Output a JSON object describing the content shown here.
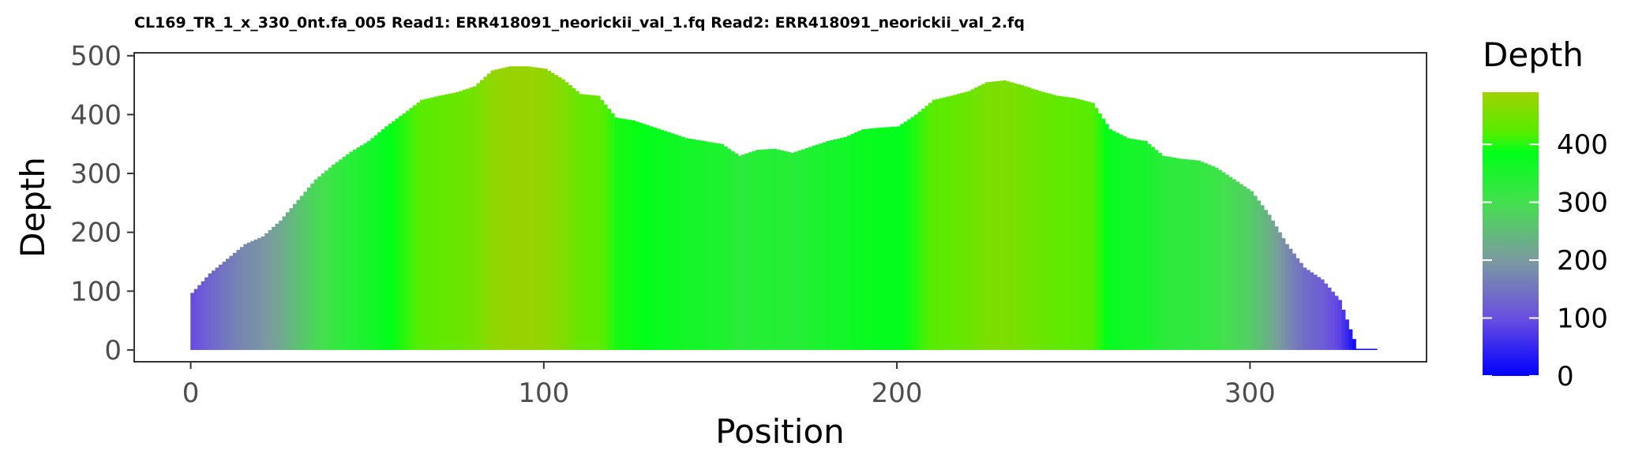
{
  "chart_data": {
    "type": "area",
    "title": "CL169_TR_1_x_330_0nt.fa_005 Read1: ERR418091_neorickii_val_1.fq Read2: ERR418091_neorickii_val_2.fq",
    "xlabel": "Position",
    "ylabel": "Depth",
    "xlim": [
      -16,
      350
    ],
    "ylim": [
      -20,
      505
    ],
    "x_ticks": [
      0,
      100,
      200,
      300
    ],
    "y_ticks": [
      0,
      100,
      200,
      300,
      400,
      500
    ],
    "grid": false,
    "legend": {
      "title": "Depth",
      "placement": "right",
      "ticks": [
        0,
        100,
        200,
        300,
        400
      ],
      "range": [
        0,
        490
      ],
      "gradient": [
        {
          "value": 0,
          "color": "#0000ff"
        },
        {
          "value": 100,
          "color": "#6a4fe0"
        },
        {
          "value": 200,
          "color": "#7b9aa0"
        },
        {
          "value": 300,
          "color": "#44e04e"
        },
        {
          "value": 385,
          "color": "#00ff19"
        },
        {
          "value": 420,
          "color": "#55ee00"
        },
        {
          "value": 490,
          "color": "#a0d000"
        }
      ]
    },
    "x": [
      0,
      5,
      10,
      15,
      20,
      25,
      30,
      35,
      40,
      45,
      50,
      55,
      60,
      65,
      70,
      75,
      80,
      85,
      90,
      95,
      100,
      105,
      110,
      115,
      120,
      125,
      130,
      135,
      140,
      145,
      150,
      155,
      160,
      165,
      170,
      175,
      180,
      185,
      190,
      195,
      200,
      205,
      210,
      215,
      220,
      225,
      230,
      235,
      240,
      245,
      250,
      255,
      260,
      265,
      270,
      275,
      280,
      285,
      290,
      295,
      300,
      305,
      310,
      315,
      320,
      325,
      330,
      333,
      335
    ],
    "values": [
      97,
      130,
      155,
      180,
      193,
      220,
      255,
      290,
      315,
      337,
      355,
      380,
      402,
      425,
      432,
      438,
      448,
      475,
      482,
      482,
      478,
      460,
      435,
      432,
      395,
      390,
      380,
      370,
      360,
      355,
      350,
      330,
      340,
      342,
      335,
      345,
      355,
      362,
      375,
      378,
      380,
      400,
      425,
      432,
      440,
      455,
      458,
      450,
      440,
      432,
      428,
      420,
      375,
      360,
      355,
      330,
      325,
      322,
      310,
      290,
      270,
      230,
      180,
      140,
      120,
      85,
      2,
      2,
      2
    ]
  }
}
